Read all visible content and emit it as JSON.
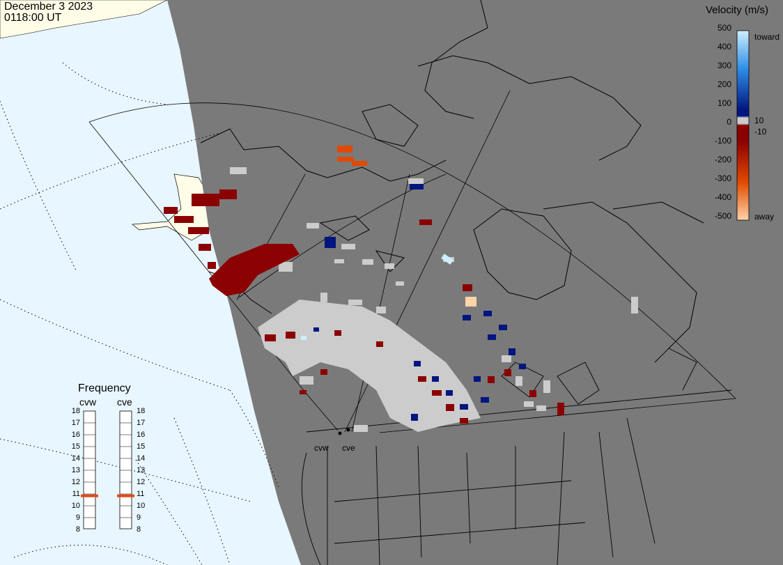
{
  "header": {
    "date": "December 3 2023",
    "time": "0118:00 UT"
  },
  "legend": {
    "title": "Velocity (m/s)",
    "ticks": [
      "500",
      "400",
      "300",
      "200",
      "100",
      "0",
      "-100",
      "-200",
      "-300",
      "-400",
      "-500"
    ],
    "inner_pos": "10",
    "inner_neg": "-10",
    "toward_label": "toward",
    "away_label": "away",
    "colors": {
      "toward_light": "#cfeeff",
      "toward_mid": "#2f8fe8",
      "toward_dark": "#001580",
      "ground_scatter": "#cccccc",
      "away_dark": "#8b0000",
      "away_mid": "#e04a00",
      "away_light": "#ffd4a8"
    }
  },
  "frequency": {
    "title": "Frequency",
    "radars": [
      {
        "code": "cvw",
        "freq_mhz": 10.8
      },
      {
        "code": "cve",
        "freq_mhz": 10.8
      }
    ],
    "ticks": [
      "18",
      "17",
      "16",
      "15",
      "14",
      "13",
      "12",
      "11",
      "10",
      "9",
      "8"
    ],
    "marker_color": "#e04a1a"
  },
  "map": {
    "ocean_color": "#e8f6ff",
    "nightside_color": "#7a7a7a",
    "dayland_color": "#fffde8",
    "sites": [
      "cvw",
      "cve"
    ]
  }
}
